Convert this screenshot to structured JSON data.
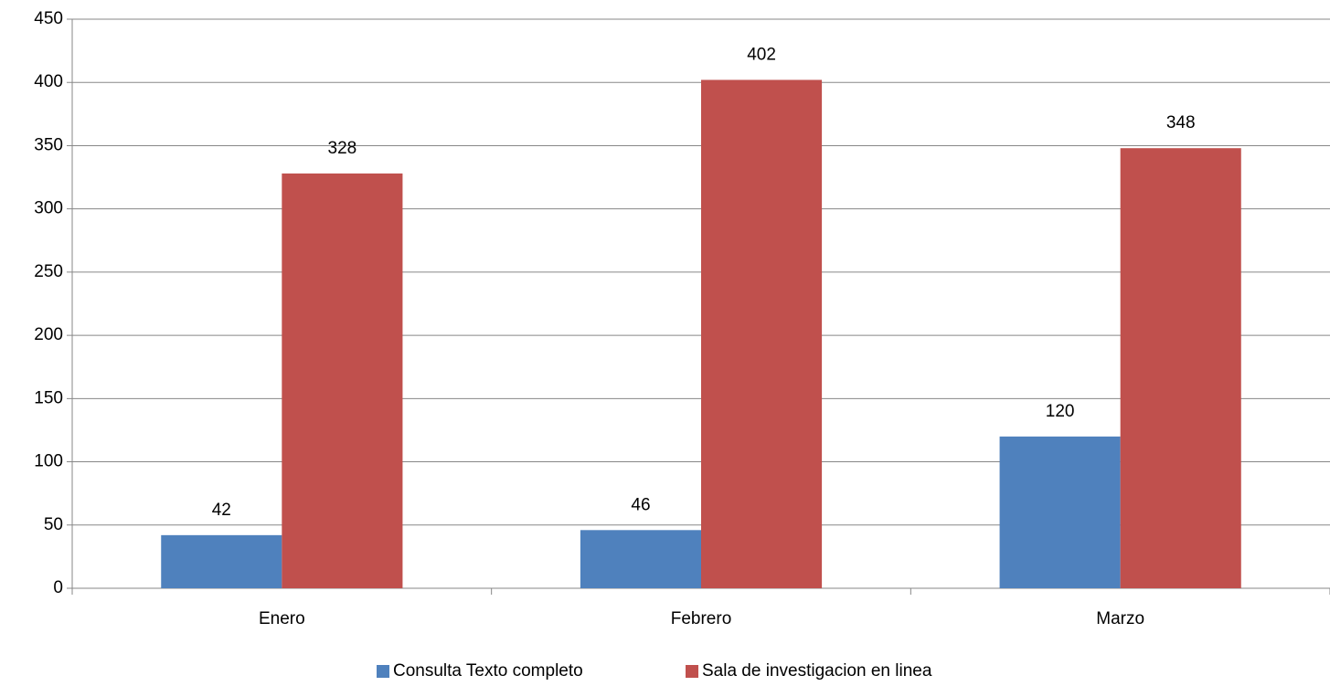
{
  "chart_data": {
    "type": "bar",
    "categories": [
      "Enero",
      "Febrero",
      "Marzo"
    ],
    "series": [
      {
        "name": "Consulta Texto completo",
        "color": "#4f81bd",
        "values": [
          42,
          46,
          120
        ]
      },
      {
        "name": "Sala de investigacion en linea",
        "color": "#c0504d",
        "values": [
          328,
          402,
          348
        ]
      }
    ],
    "ylim": [
      0,
      450
    ],
    "yticks": [
      0,
      50,
      100,
      150,
      200,
      250,
      300,
      350,
      400,
      450
    ],
    "grid": true,
    "legend": "bottom"
  }
}
